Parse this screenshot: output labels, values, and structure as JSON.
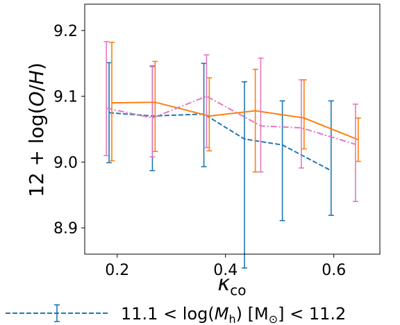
{
  "chart_data": {
    "type": "line",
    "xlabel": "κ_co",
    "ylabel": "12 + log(O/H)",
    "xlim": [
      0.14,
      0.685
    ],
    "ylim": [
      8.86,
      9.24
    ],
    "xticks": [
      0.2,
      0.4,
      0.6
    ],
    "xtick_labels": [
      "0.2",
      "0.4",
      "0.6"
    ],
    "yticks": [
      8.9,
      9.0,
      9.1,
      9.2
    ],
    "ytick_labels": [
      "8.9",
      "9.0",
      "9.1",
      "9.2"
    ],
    "series": [
      {
        "name": "11.1 < log(M_h) [M_⊙] < 11.2",
        "color": "#1f77b4",
        "linestyle": "dashed",
        "x": [
          0.185,
          0.265,
          0.36,
          0.435,
          0.505,
          0.595
        ],
        "y": [
          9.075,
          9.07,
          9.073,
          9.035,
          9.026,
          8.987
        ],
        "yerr_low": [
          8.999,
          8.987,
          8.993,
          8.839,
          8.911,
          8.919
        ],
        "yerr_high": [
          9.151,
          9.146,
          9.15,
          9.122,
          9.093,
          9.093
        ]
      },
      {
        "name": "",
        "color": "#ff7f0e",
        "linestyle": "solid",
        "x": [
          0.19,
          0.27,
          0.37,
          0.455,
          0.545,
          0.645
        ],
        "y": [
          9.09,
          9.091,
          9.07,
          9.078,
          9.067,
          9.034
        ],
        "yerr_low": [
          9.002,
          9.016,
          9.017,
          8.985,
          9.02,
          9.001
        ],
        "yerr_high": [
          9.182,
          9.153,
          9.128,
          9.141,
          9.125,
          9.067
        ]
      },
      {
        "name": "",
        "color": "#e377c2",
        "linestyle": "dashdot",
        "x": [
          0.18,
          0.265,
          0.365,
          0.465,
          0.54,
          0.64
        ],
        "y": [
          9.082,
          9.067,
          9.1,
          9.055,
          9.052,
          9.027
        ],
        "yerr_low": [
          9.01,
          9.008,
          9.022,
          8.985,
          8.991,
          8.94
        ],
        "yerr_high": [
          9.183,
          9.145,
          9.163,
          9.158,
          9.125,
          9.088
        ]
      }
    ],
    "legend": {
      "placement": "bottom-left, below plot",
      "label": "11.1 < log(M_h) [M_⊙] < 11.2"
    }
  }
}
